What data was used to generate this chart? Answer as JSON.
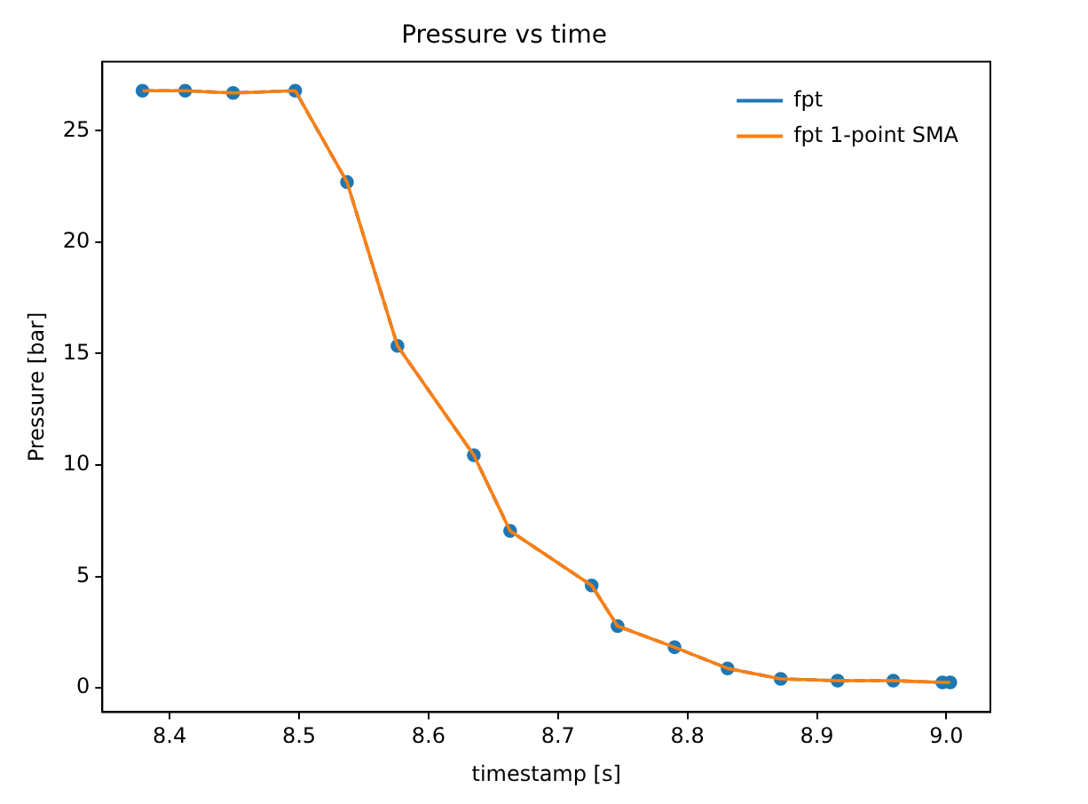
{
  "chart_data": {
    "type": "line",
    "title": "Pressure vs time",
    "xlabel": "timestamp [s]",
    "ylabel": "Pressure [bar]",
    "xlim": [
      8.348,
      9.034
    ],
    "xticks": [
      {
        "value": 8.4,
        "label": "8.4"
      },
      {
        "value": 8.5,
        "label": "8.5"
      },
      {
        "value": 8.6,
        "label": "8.6"
      },
      {
        "value": 8.7,
        "label": "8.7"
      },
      {
        "value": 8.8,
        "label": "8.8"
      },
      {
        "value": 8.9,
        "label": "8.9"
      },
      {
        "value": 9.0,
        "label": "9.0"
      }
    ],
    "ylim": [
      -1.09,
      28.1
    ],
    "yticks": [
      0,
      5,
      10,
      15,
      20,
      25
    ],
    "x": [
      8.379,
      8.412,
      8.449,
      8.497,
      8.537,
      8.576,
      8.635,
      8.663,
      8.726,
      8.746,
      8.79,
      8.831,
      8.872,
      8.916,
      8.959,
      8.997,
      9.003
    ],
    "series": [
      {
        "name": "fpt",
        "color": "#1f77b4",
        "marker": "circle",
        "line_style": "dashed",
        "values": [
          26.8,
          26.8,
          26.7,
          26.8,
          22.7,
          15.35,
          10.44,
          7.04,
          4.59,
          2.77,
          1.82,
          0.87,
          0.4,
          0.32,
          0.32,
          0.24,
          0.24
        ]
      },
      {
        "name": "fpt 1-point SMA",
        "color": "#ff7f0e",
        "marker": "none",
        "line_style": "solid",
        "values": [
          26.8,
          26.8,
          26.7,
          26.8,
          22.7,
          15.35,
          10.44,
          7.04,
          4.59,
          2.77,
          1.82,
          0.87,
          0.4,
          0.32,
          0.32,
          0.24,
          0.24
        ]
      }
    ],
    "legend": "top right",
    "grid": false
  }
}
